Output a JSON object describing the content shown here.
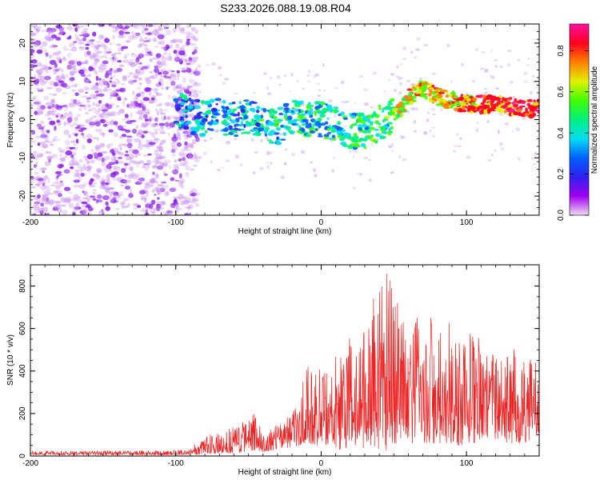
{
  "page": {
    "title": "S233.2026.088.19.08.R04"
  },
  "chart_data": [
    {
      "type": "heatmap",
      "name": "spectrogram",
      "title": "S233.2026.088.19.08.R04",
      "xlabel": "Height of straight line (km)",
      "ylabel": "Frequency (Hz)",
      "xlim": [
        -200,
        150
      ],
      "ylim": [
        -25,
        25
      ],
      "x_ticks": [
        -200,
        -100,
        0,
        100
      ],
      "x_tick_labels": [
        "-200",
        "-100",
        "0",
        "100"
      ],
      "y_ticks": [
        -20,
        -10,
        0,
        10,
        20
      ],
      "y_tick_labels": [
        "-20",
        "-10",
        "0",
        "10",
        "20"
      ],
      "trend_line": {
        "x": [
          -100,
          -90,
          -80,
          -70,
          -60,
          -50,
          -40,
          -30,
          -20,
          -10,
          0,
          10,
          20,
          30,
          40,
          50,
          55,
          60,
          65,
          70,
          75,
          80,
          90,
          100,
          110,
          120,
          130,
          140,
          150
        ],
        "y": [
          3,
          1,
          0,
          1,
          0,
          1,
          -1,
          -2,
          1,
          0,
          0,
          -1,
          -3,
          -3,
          -1,
          1,
          3,
          6,
          7,
          8,
          7,
          6,
          5,
          4,
          4,
          4,
          3.5,
          3,
          3
        ]
      },
      "colorbar": {
        "label": "Normalized spectral amplitude",
        "range": [
          0,
          0.93
        ],
        "ticks": [
          0.0,
          0.2,
          0.4,
          0.6,
          0.8
        ],
        "tick_labels": [
          "0.0",
          "0.2",
          "0.4",
          "0.6",
          "0.8"
        ],
        "colors": [
          "#f0dcf0",
          "#a000f0",
          "#3020f0",
          "#0060ff",
          "#00e0f0",
          "#00f080",
          "#40ff00",
          "#e0f000",
          "#ff8000",
          "#ff0020",
          "#ff10a0"
        ]
      }
    },
    {
      "type": "line",
      "name": "snr",
      "xlabel": "Height of straight line (km)",
      "ylabel": "SNR (10 * v/v)",
      "xlim": [
        -200,
        150
      ],
      "ylim": [
        0,
        900
      ],
      "x_ticks": [
        -200,
        -100,
        0,
        100
      ],
      "x_tick_labels": [
        "-200",
        "-100",
        "0",
        "100"
      ],
      "y_ticks": [
        0,
        200,
        400,
        600,
        800
      ],
      "y_tick_labels": [
        "0",
        "200",
        "400",
        "600",
        "800"
      ],
      "color": "#ee2222",
      "envelope": {
        "x": [
          -200,
          -150,
          -110,
          -95,
          -90,
          -80,
          -70,
          -60,
          -50,
          -45,
          -40,
          -30,
          -20,
          -15,
          -10,
          -5,
          0,
          10,
          20,
          30,
          40,
          45,
          50,
          60,
          70,
          80,
          90,
          100,
          110,
          120,
          130,
          140,
          150
        ],
        "max": [
          25,
          25,
          25,
          30,
          45,
          90,
          120,
          150,
          180,
          210,
          100,
          150,
          200,
          280,
          430,
          480,
          400,
          480,
          560,
          650,
          800,
          890,
          780,
          640,
          680,
          660,
          620,
          580,
          560,
          520,
          520,
          480,
          440
        ],
        "min": [
          5,
          5,
          5,
          5,
          5,
          10,
          10,
          15,
          20,
          30,
          20,
          30,
          40,
          50,
          60,
          50,
          40,
          30,
          30,
          40,
          30,
          20,
          60,
          60,
          60,
          60,
          60,
          40,
          80,
          80,
          60,
          60,
          100
        ]
      }
    }
  ]
}
